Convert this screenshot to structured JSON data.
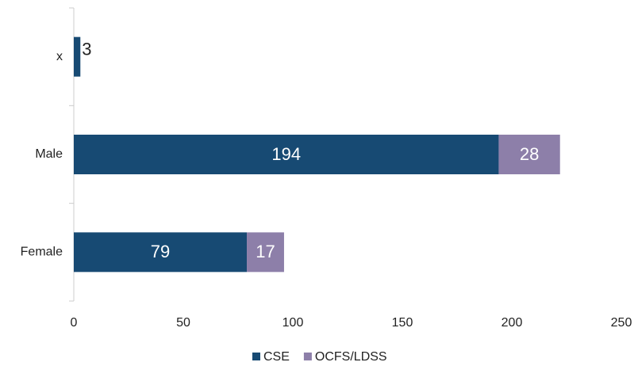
{
  "chart_data": {
    "type": "stacked-barh",
    "categories": [
      "x",
      "Male",
      "Female"
    ],
    "series": [
      {
        "name": "CSE",
        "color": "#174a73",
        "values": [
          3,
          194,
          79
        ]
      },
      {
        "name": "OCFS/LDSS",
        "color": "#8d7fa9",
        "values": [
          null,
          28,
          17
        ]
      }
    ],
    "xlim": [
      0,
      250
    ],
    "xticks": [
      0,
      50,
      100,
      150,
      200,
      250
    ],
    "grid": false,
    "legend": "bottom"
  }
}
